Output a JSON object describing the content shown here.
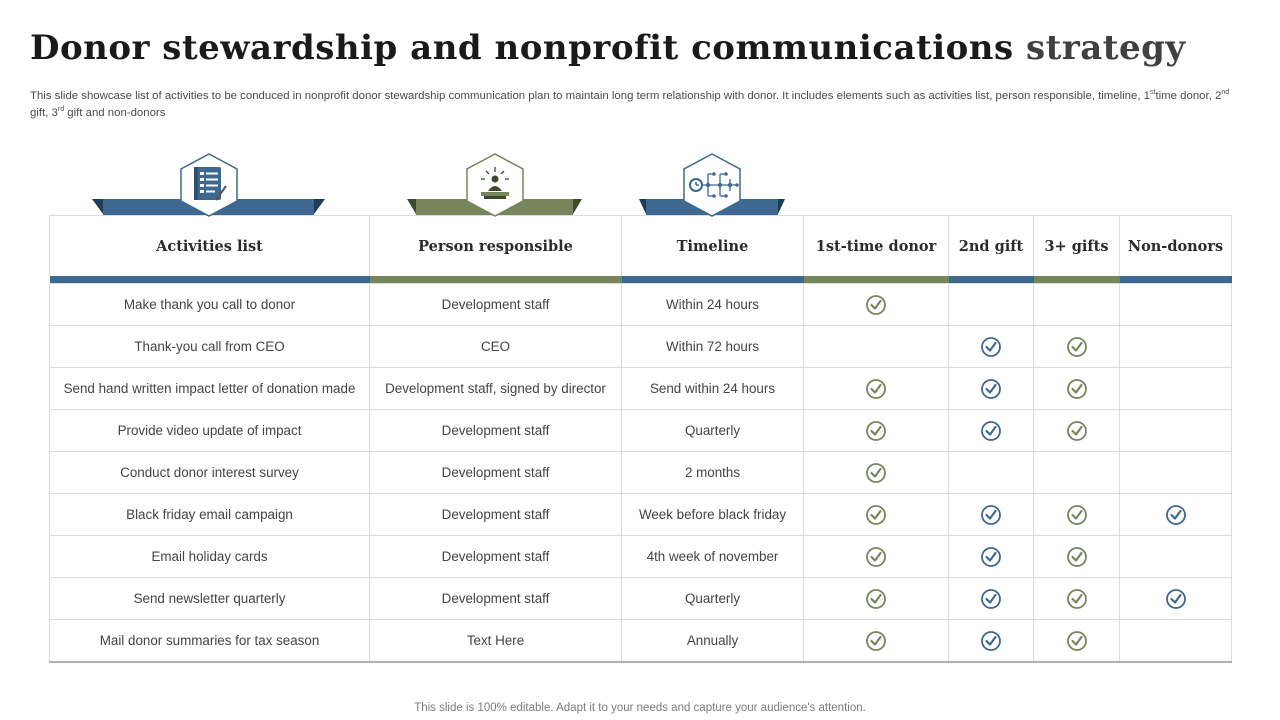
{
  "title": {
    "main": "Donor stewardship and nonprofit communications ",
    "highlight": "strategy"
  },
  "subtitle": {
    "part1": "This slide showcase list of activities to  be conduced in nonprofit donor stewardship communication plan to maintain long term relationship with donor. It includes elements such as activities list, person responsible, timeline, 1",
    "sup1": "st",
    "part2": "time donor, 2",
    "sup2": "nd",
    "part3": " gift, 3",
    "sup3": "rd",
    "part4": " gift and non-donors"
  },
  "icons": [
    "checklist-icon",
    "speaker-icon",
    "timeline-icon"
  ],
  "columns": [
    {
      "label": "Activities list",
      "bar": "#3f6891"
    },
    {
      "label": "Person responsible",
      "bar": "#76855c"
    },
    {
      "label": "Timeline",
      "bar": "#3f6891"
    },
    {
      "label": "1st-time donor",
      "bar": "#76855c"
    },
    {
      "label": "2nd gift",
      "bar": "#3f6891"
    },
    {
      "label": "3+ gifts",
      "bar": "#76855c"
    },
    {
      "label": "Non-donors",
      "bar": "#3f6891"
    }
  ],
  "check_colors": {
    "first_time": "#76855c",
    "second_gift": "#3f6891",
    "three_plus": "#76855c",
    "non_donors": "#3f6891"
  },
  "rows": [
    {
      "activity": "Make thank you call to donor",
      "person": "Development  staff",
      "timeline": "Within 24 hours",
      "first_time": true,
      "second_gift": false,
      "three_plus": false,
      "non_donors": false
    },
    {
      "activity": "Thank-you  call from CEO",
      "person": "CEO",
      "timeline": "Within 72 hours",
      "first_time": false,
      "second_gift": true,
      "three_plus": true,
      "non_donors": false
    },
    {
      "activity": "Send hand written impact letter of donation made",
      "person": "Development  staff, signed by director",
      "timeline": "Send within 24 hours",
      "first_time": true,
      "second_gift": true,
      "three_plus": true,
      "non_donors": false
    },
    {
      "activity": "Provide video update of impact",
      "person": "Development  staff",
      "timeline": "Quarterly",
      "first_time": true,
      "second_gift": true,
      "three_plus": true,
      "non_donors": false
    },
    {
      "activity": "Conduct donor interest survey",
      "person": "Development  staff",
      "timeline": "2 months",
      "first_time": true,
      "second_gift": false,
      "three_plus": false,
      "non_donors": false
    },
    {
      "activity": "Black friday email campaign",
      "person": "Development  staff",
      "timeline": "Week before black friday",
      "first_time": true,
      "second_gift": true,
      "three_plus": true,
      "non_donors": true
    },
    {
      "activity": "Email holiday cards",
      "person": "Development  staff",
      "timeline": "4th week of november",
      "first_time": true,
      "second_gift": true,
      "three_plus": true,
      "non_donors": false
    },
    {
      "activity": "Send newsletter quarterly",
      "person": "Development  staff",
      "timeline": "Quarterly",
      "first_time": true,
      "second_gift": true,
      "three_plus": true,
      "non_donors": true
    },
    {
      "activity": "Mail donor summaries for tax season",
      "person": "Text Here",
      "timeline": "Annually",
      "first_time": true,
      "second_gift": true,
      "three_plus": true,
      "non_donors": false
    }
  ],
  "footer": "This slide is 100% editable. Adapt it to your needs and capture your audience's attention."
}
